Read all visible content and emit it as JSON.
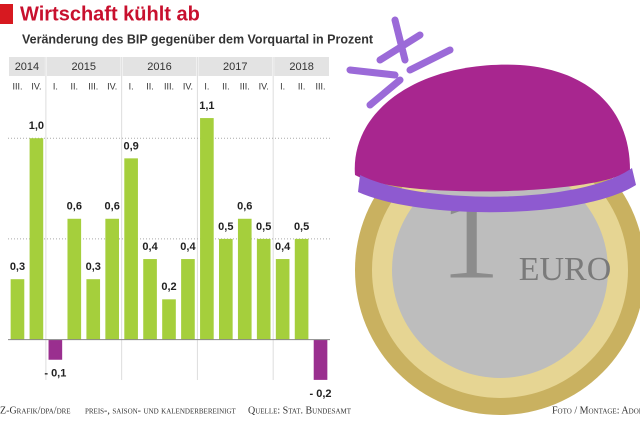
{
  "chart_data": {
    "type": "bar",
    "title": "Wirtschaft kühlt ab",
    "subtitle": "Veränderung des BIP gegenüber dem Vorquartal in Prozent",
    "years": [
      "2014",
      "2015",
      "2016",
      "2017",
      "2018"
    ],
    "categories": [
      "III.",
      "IV.",
      "I.",
      "II.",
      "III.",
      "IV.",
      "I.",
      "II.",
      "III.",
      "IV.",
      "I.",
      "II.",
      "III.",
      "IV.",
      "I.",
      "II.",
      "III."
    ],
    "values": [
      0.3,
      1.0,
      -0.1,
      0.6,
      0.3,
      0.6,
      0.9,
      0.4,
      0.2,
      0.4,
      1.1,
      0.5,
      0.6,
      0.5,
      0.4,
      0.5,
      -0.2
    ],
    "value_labels": [
      "0,3",
      "1,0",
      "- 0,1",
      "0,6",
      "0,3",
      "0,6",
      "0,9",
      "0,4",
      "0,2",
      "0,4",
      "1,1",
      "0,5",
      "0,6",
      "0,5",
      "0,4",
      "0,5",
      "- 0,2"
    ],
    "color": "#a5cf3c",
    "negative_color": "#9a2f8f",
    "ylim": [
      -0.28,
      1.15
    ],
    "grid_lines": [
      0.5,
      1.0
    ],
    "footer": [
      "Z-Grafik/dpa/dre",
      "preis-, saison- und kalenderbereinigt",
      "Quelle: Stat. Bundesamt",
      "Foto / Montage: Adobe"
    ],
    "photo_text": [
      "1",
      "EURO"
    ]
  }
}
